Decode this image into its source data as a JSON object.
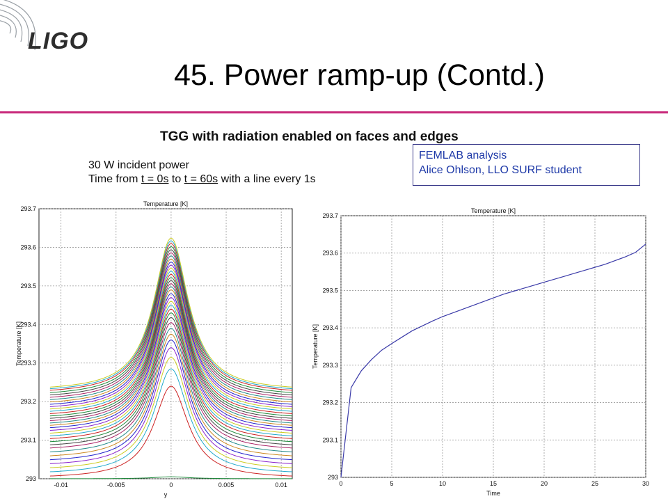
{
  "header": {
    "logo_text": "LIGO",
    "title": "45. Power ramp-up (Contd.)",
    "accent_color": "#c8287a"
  },
  "content": {
    "subtitle": "TGG with radiation enabled on faces and edges",
    "line1": "30 W incident power",
    "line2_a": "Time from ",
    "line2_t0": "t = 0s",
    "line2_b": " to ",
    "line2_t1": "t = 60s",
    "line2_c": " with a line every 1s",
    "credit_line1": "FEMLAB analysis",
    "credit_line2": "Alice Ohlson, LLO SURF student"
  },
  "chart_data": [
    {
      "type": "line",
      "title": "Temperature [K]",
      "xlabel": "y",
      "ylabel": "Temperature [K]",
      "xlim": [
        -0.012,
        0.011
      ],
      "ylim": [
        293,
        293.7
      ],
      "xticks": [
        -0.01,
        -0.005,
        0,
        0.005,
        0.01
      ],
      "xtick_labels": [
        "-0.01",
        "-0.005",
        "0",
        "0.005",
        "0.01"
      ],
      "yticks": [
        293,
        293.1,
        293.2,
        293.3,
        293.4,
        293.5,
        293.6,
        293.7
      ],
      "ytick_labels": [
        "293",
        "293.1",
        "293.2",
        "293.3",
        "293.4",
        "293.5",
        "293.6",
        "293.7"
      ],
      "grid": true,
      "x_range": [
        -0.011,
        0.011
      ],
      "peak_width": 0.0019,
      "series_colors": [
        "#1f8a3c",
        "#cc2222",
        "#22aacc",
        "#cccc22",
        "#8a22cc",
        "#2222cc",
        "#cc8822",
        "#228a88",
        "#aa2266",
        "#444444"
      ],
      "series": [
        {
          "peak": 293.005,
          "edge": 293.0
        },
        {
          "peak": 293.24,
          "edge": 293.0
        },
        {
          "peak": 293.285,
          "edge": 293.01
        },
        {
          "peak": 293.315,
          "edge": 293.02
        },
        {
          "peak": 293.34,
          "edge": 293.03
        },
        {
          "peak": 293.36,
          "edge": 293.04
        },
        {
          "peak": 293.375,
          "edge": 293.05
        },
        {
          "peak": 293.39,
          "edge": 293.06
        },
        {
          "peak": 293.405,
          "edge": 293.07
        },
        {
          "peak": 293.418,
          "edge": 293.078
        },
        {
          "peak": 293.43,
          "edge": 293.086
        },
        {
          "peak": 293.44,
          "edge": 293.094
        },
        {
          "peak": 293.45,
          "edge": 293.101
        },
        {
          "peak": 293.46,
          "edge": 293.108
        },
        {
          "peak": 293.47,
          "edge": 293.115
        },
        {
          "peak": 293.48,
          "edge": 293.122
        },
        {
          "peak": 293.49,
          "edge": 293.128
        },
        {
          "peak": 293.498,
          "edge": 293.134
        },
        {
          "peak": 293.506,
          "edge": 293.14
        },
        {
          "peak": 293.514,
          "edge": 293.146
        },
        {
          "peak": 293.522,
          "edge": 293.152
        },
        {
          "peak": 293.53,
          "edge": 293.158
        },
        {
          "peak": 293.538,
          "edge": 293.164
        },
        {
          "peak": 293.546,
          "edge": 293.17
        },
        {
          "peak": 293.554,
          "edge": 293.176
        },
        {
          "peak": 293.562,
          "edge": 293.182
        },
        {
          "peak": 293.57,
          "edge": 293.188
        },
        {
          "peak": 293.578,
          "edge": 293.194
        },
        {
          "peak": 293.586,
          "edge": 293.2
        },
        {
          "peak": 293.594,
          "edge": 293.206
        },
        {
          "peak": 293.602,
          "edge": 293.212
        },
        {
          "peak": 293.61,
          "edge": 293.218
        },
        {
          "peak": 293.617,
          "edge": 293.222
        },
        {
          "peak": 293.624,
          "edge": 293.226
        }
      ]
    },
    {
      "type": "line",
      "title": "Temperature [K]",
      "xlabel": "Time",
      "ylabel": "Temperature [K]",
      "xlim": [
        0,
        30
      ],
      "ylim": [
        293,
        293.7
      ],
      "xticks": [
        0,
        5,
        10,
        15,
        20,
        25,
        30
      ],
      "xtick_labels": [
        "0",
        "5",
        "10",
        "15",
        "20",
        "25",
        "30"
      ],
      "yticks": [
        293,
        293.1,
        293.2,
        293.3,
        293.4,
        293.5,
        293.6,
        293.7
      ],
      "ytick_labels": [
        "293",
        "293.1",
        "293.2",
        "293.3",
        "293.4",
        "293.5",
        "293.6",
        "293.7"
      ],
      "grid": true,
      "line_color": "#3a3aa8",
      "x": [
        0,
        1,
        2,
        3,
        4,
        5,
        6,
        7,
        8,
        9,
        10,
        11,
        12,
        13,
        14,
        15,
        16,
        17,
        18,
        19,
        20,
        21,
        22,
        23,
        24,
        25,
        26,
        27,
        28,
        29,
        30
      ],
      "y": [
        293.0,
        293.24,
        293.285,
        293.315,
        293.34,
        293.358,
        293.375,
        293.392,
        293.405,
        293.418,
        293.43,
        293.44,
        293.45,
        293.46,
        293.47,
        293.48,
        293.49,
        293.498,
        293.506,
        293.514,
        293.522,
        293.53,
        293.538,
        293.546,
        293.554,
        293.562,
        293.57,
        293.58,
        293.59,
        293.602,
        293.624
      ]
    }
  ]
}
